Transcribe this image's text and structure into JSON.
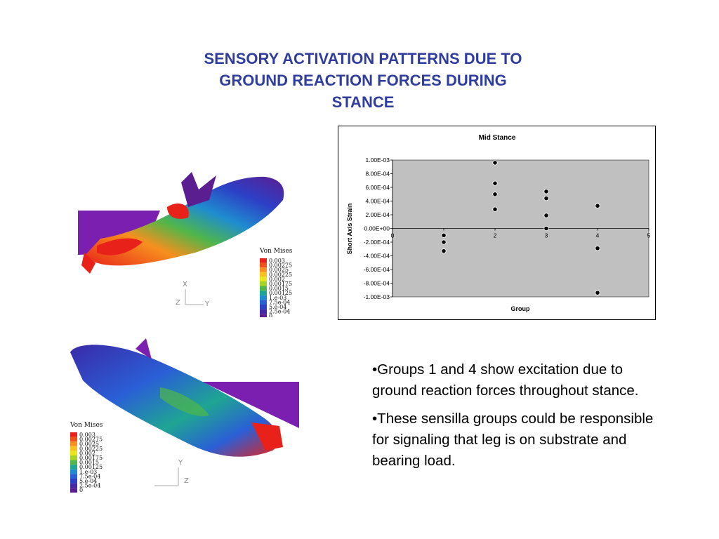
{
  "slide": {
    "title_lines": [
      "SENSORY ACTIVATION PATTERNS DUE TO",
      "GROUND REACTION FORCES DURING",
      "STANCE"
    ],
    "bullets": [
      "•Groups 1 and 4 show excitation due to ground reaction forces throughout stance.",
      "•These sensilla groups could be responsible for signaling that leg is on substrate and bearing load."
    ]
  },
  "fem_legend": {
    "title": "Von Mises",
    "values": [
      "0.003",
      "0.00275",
      "0.0025",
      "0.00225",
      "0.002",
      "0.00175",
      "0.0015",
      "0.00125",
      "1.e-03",
      "7.5e-04",
      "5.e-04",
      "2.5e-04",
      "0"
    ],
    "colors": [
      "#e8221a",
      "#f0501a",
      "#f7901e",
      "#f5c21e",
      "#e9e61a",
      "#a6d32a",
      "#4fb64a",
      "#1fa593",
      "#1f8ccf",
      "#2a5fd6",
      "#2d3fc6",
      "#4328a8",
      "#5b1e91"
    ],
    "axis_labels_top": [
      "Z",
      "Y",
      "X"
    ],
    "axis_labels_bottom": [
      "Y",
      "Z"
    ]
  },
  "chart_data": {
    "type": "scatter",
    "title": "Mid Stance",
    "xlabel": "Group",
    "ylabel": "Short Axis Strain",
    "xlim": [
      0,
      5
    ],
    "ylim": [
      -0.001,
      0.001
    ],
    "x_ticks": [
      "0",
      "1",
      "2",
      "3",
      "4",
      "5"
    ],
    "y_ticks": [
      "1.00E-03",
      "8.00E-04",
      "6.00E-04",
      "4.00E-04",
      "2.00E-04",
      "0.00E+00",
      "-2.00E-04",
      "-4.00E-04",
      "-6.00E-04",
      "-8.00E-04",
      "-1.00E-03"
    ],
    "grid": false,
    "plot_background": "#c0c0c0",
    "points": [
      {
        "x": 1,
        "y": -0.0001
      },
      {
        "x": 1,
        "y": -0.0002
      },
      {
        "x": 1,
        "y": -0.00033
      },
      {
        "x": 2,
        "y": 0.00096
      },
      {
        "x": 2,
        "y": 0.00066
      },
      {
        "x": 2,
        "y": 0.0005
      },
      {
        "x": 2,
        "y": 0.00028
      },
      {
        "x": 3,
        "y": 0.00054
      },
      {
        "x": 3,
        "y": 0.00044
      },
      {
        "x": 3,
        "y": 0.00019
      },
      {
        "x": 3,
        "y": 0.0
      },
      {
        "x": 4,
        "y": 0.00033
      },
      {
        "x": 4,
        "y": -0.00029
      },
      {
        "x": 4,
        "y": -0.00094
      }
    ]
  }
}
